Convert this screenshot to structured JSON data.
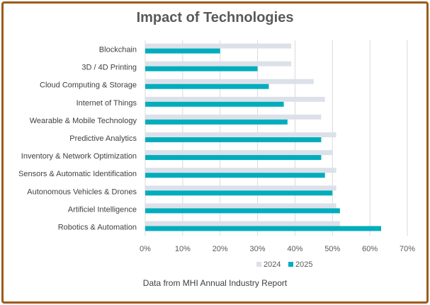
{
  "chart_data": {
    "type": "bar",
    "orientation": "horizontal",
    "title": "Impact of Technologies",
    "caption": "Data from MHI Annual Industry Report",
    "categories": [
      "Blockchain",
      "3D / 4D Printing",
      "Cloud Computing & Storage",
      "Internet of Things",
      "Wearable & Mobile Technology",
      "Predictive Analytics",
      "Inventory & Network Optimization",
      "Sensors & Automatic Identification",
      "Autonomous Vehicles & Drones",
      "Artificiel Intelligence",
      "Robotics & Automation"
    ],
    "series": [
      {
        "name": "2024",
        "color": "#dce1e9",
        "values": [
          39,
          39,
          45,
          48,
          47,
          51,
          50,
          51,
          51,
          51,
          52
        ]
      },
      {
        "name": "2025",
        "color": "#00adbd",
        "values": [
          20,
          30,
          33,
          37,
          38,
          47,
          47,
          48,
          50,
          52,
          63
        ]
      }
    ],
    "xlim": [
      0,
      70
    ],
    "xticks": [
      "0%",
      "10%",
      "20%",
      "30%",
      "40%",
      "50%",
      "60%",
      "70%"
    ],
    "grid": true,
    "legend": "bottom",
    "frame_color": "#9a5b1c"
  }
}
